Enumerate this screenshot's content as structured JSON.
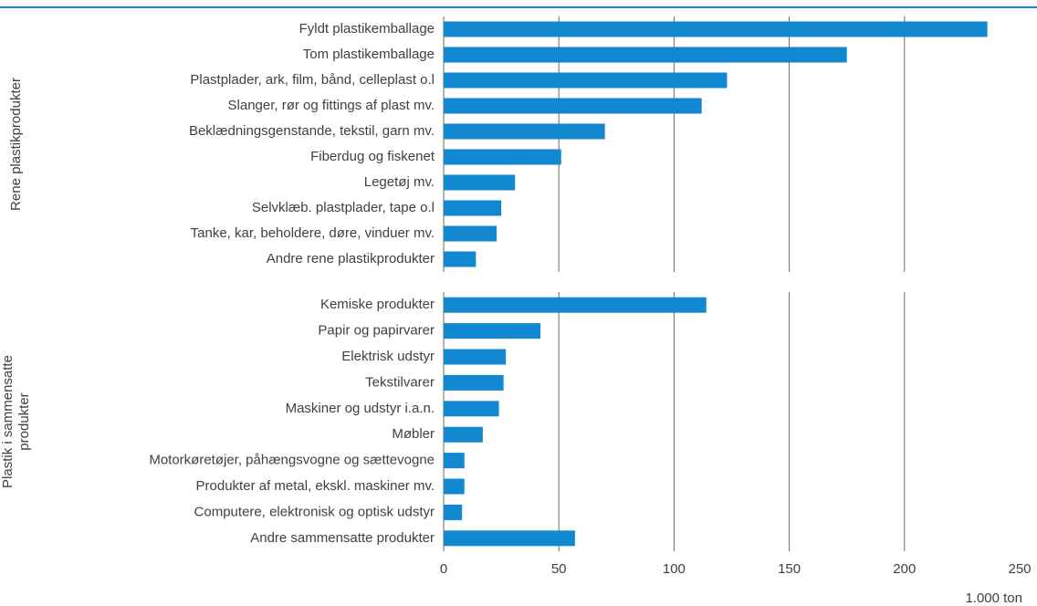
{
  "chart_data": {
    "type": "bar",
    "color": "#1188d0",
    "grid": true,
    "xlim": [
      0,
      250
    ],
    "xticks": [
      0,
      50,
      100,
      150,
      200,
      250
    ],
    "x_label": "1.000 ton",
    "groups": [
      {
        "name_lines": [
          "Rene plastikprodukter"
        ],
        "categories": [
          "Fyldt plastikemballage",
          "Tom plastikemballage",
          "Plastplader, ark, film, bånd, celleplast o.l",
          "Slanger, rør og fittings af plast mv.",
          "Beklædningsgenstande, tekstil, garn mv.",
          "Fiberdug og fiskenet",
          "Legetøj mv.",
          "Selvklæb. plastplader, tape o.l",
          "Tanke, kar, beholdere, døre, vinduer mv.",
          "Andre rene plastikprodukter"
        ],
        "values": [
          236,
          175,
          123,
          112,
          70,
          51,
          31,
          25,
          23,
          14
        ]
      },
      {
        "name_lines": [
          "Plastik i sammensatte",
          "produkter"
        ],
        "categories": [
          "Kemiske produkter",
          "Papir og papirvarer",
          "Elektrisk udstyr",
          "Tekstilvarer",
          "Maskiner og udstyr i.a.n.",
          "Møbler",
          "Motorkøretøjer, påhængsvogne og sættevogne",
          "Produkter af metal, ekskl. maskiner mv.",
          "Computere, elektronisk og optisk udstyr",
          "Andre sammensatte produkter"
        ],
        "values": [
          114,
          42,
          27,
          26,
          24,
          17,
          9,
          9,
          8,
          57
        ]
      }
    ]
  }
}
